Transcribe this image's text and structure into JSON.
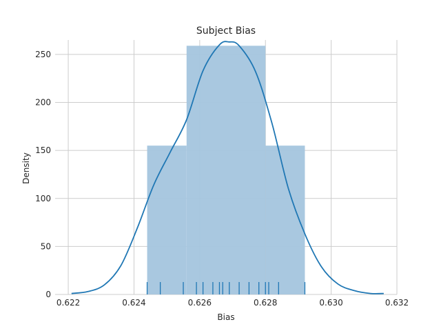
{
  "chart_data": {
    "type": "histogram",
    "title": "Subject Bias",
    "xlabel": "Bias",
    "ylabel": "Density",
    "xlim": [
      0.6216,
      0.632
    ],
    "ylim": [
      0,
      265
    ],
    "grid": true,
    "xticks": [
      0.622,
      0.624,
      0.626,
      0.628,
      0.63,
      0.632
    ],
    "xtick_labels": [
      "0.622",
      "0.624",
      "0.626",
      "0.628",
      "0.630",
      "0.632"
    ],
    "yticks": [
      0,
      50,
      100,
      150,
      200,
      250
    ],
    "ytick_labels": [
      "0",
      "50",
      "100",
      "150",
      "200",
      "250"
    ],
    "bars": [
      {
        "x0": 0.6244,
        "x1": 0.6256,
        "density": 155
      },
      {
        "x0": 0.6256,
        "x1": 0.628,
        "density": 259
      },
      {
        "x0": 0.628,
        "x1": 0.6292,
        "density": 155
      }
    ],
    "kde": {
      "x": [
        0.6221,
        0.6226,
        0.6231,
        0.6236,
        0.6241,
        0.6246,
        0.6251,
        0.6256,
        0.6261,
        0.6266,
        0.6269,
        0.6272,
        0.6277,
        0.6282,
        0.6287,
        0.6292,
        0.6297,
        0.6302,
        0.6307,
        0.6312,
        0.6316
      ],
      "y": [
        1,
        3,
        10,
        30,
        69,
        114,
        148,
        182,
        233,
        260,
        263,
        259,
        232,
        178,
        110,
        63,
        29,
        11,
        4,
        1,
        1
      ]
    },
    "rug": [
      0.6244,
      0.6248,
      0.6255,
      0.6259,
      0.6261,
      0.6264,
      0.6266,
      0.6267,
      0.6269,
      0.6272,
      0.6275,
      0.6278,
      0.628,
      0.6281,
      0.6284,
      0.6292
    ],
    "colors": {
      "bar": "#a5c6df",
      "kde": "#1f77b4",
      "rug": "#1f77b4",
      "grid": "#cccccc"
    }
  }
}
